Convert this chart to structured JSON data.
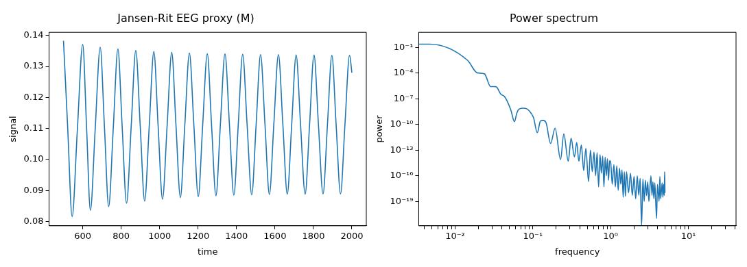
{
  "chart_data": [
    {
      "type": "line",
      "title": "Jansen-Rit EEG proxy (M)",
      "xlabel": "time",
      "ylabel": "signal",
      "grid": false,
      "legend": false,
      "xlim": [
        425,
        2075
      ],
      "ylim": [
        0.0786,
        0.141
      ],
      "xticks": [
        600,
        800,
        1000,
        1200,
        1400,
        1600,
        1800,
        2000
      ],
      "yticks": [
        0.08,
        0.09,
        {
          "value": 0.1,
          "label": "0.10"
        },
        0.11,
        0.12,
        0.13,
        0.14
      ],
      "x": [
        500,
        522,
        545,
        572,
        600,
        620,
        640,
        665,
        691,
        713,
        735,
        759,
        783,
        805,
        828,
        852,
        876,
        899,
        922,
        946,
        970,
        992,
        1015,
        1039,
        1063,
        1085,
        1108,
        1131,
        1155,
        1178,
        1201,
        1224,
        1248,
        1270,
        1293,
        1316,
        1340,
        1363,
        1386,
        1409,
        1432,
        1455,
        1479,
        1502,
        1525,
        1548,
        1571,
        1594,
        1618,
        1641,
        1664,
        1687,
        1710,
        1733,
        1757,
        1780,
        1803,
        1826,
        1850,
        1873,
        1896,
        1918,
        1941,
        1964,
        1988,
        2000
      ],
      "series": [
        {
          "color": "#1f77b4",
          "values": [
            0.1383,
            0.11,
            0.0816,
            0.1094,
            0.1371,
            0.1104,
            0.0836,
            0.1099,
            0.1362,
            0.1105,
            0.0848,
            0.1102,
            0.1356,
            0.1108,
            0.0859,
            0.1105,
            0.1351,
            0.1109,
            0.0866,
            0.1107,
            0.1348,
            0.111,
            0.0872,
            0.1109,
            0.1345,
            0.1111,
            0.0877,
            0.111,
            0.1343,
            0.1112,
            0.088,
            0.1111,
            0.1341,
            0.1112,
            0.0883,
            0.1112,
            0.134,
            0.1113,
            0.0885,
            0.1112,
            0.1339,
            0.1113,
            0.0886,
            0.1112,
            0.1338,
            0.1113,
            0.0887,
            0.1113,
            0.1338,
            0.1113,
            0.0888,
            0.1113,
            0.1337,
            0.1113,
            0.0888,
            0.1113,
            0.1337,
            0.1113,
            0.0889,
            0.1113,
            0.1336,
            0.1113,
            0.0889,
            0.1113,
            0.1336,
            0.128
          ]
        }
      ]
    },
    {
      "type": "line",
      "title": "Power spectrum",
      "xlabel": "frequency",
      "ylabel": "power",
      "grid": false,
      "legend": false,
      "log": "xy",
      "xlim": [
        0.0034,
        41
      ],
      "ylim": [
        1.4e-22,
        6
      ],
      "xticks": [
        {
          "value": 0.004,
          "label": null
        },
        {
          "value": 0.005,
          "label": null
        },
        {
          "value": 0.006,
          "label": null
        },
        {
          "value": 0.007,
          "label": null
        },
        {
          "value": 0.008,
          "label": null
        },
        {
          "value": 0.009,
          "label": null
        },
        {
          "value": 0.01,
          "label": "10⁻²"
        },
        {
          "value": 0.02,
          "label": null
        },
        {
          "value": 0.03,
          "label": null
        },
        {
          "value": 0.04,
          "label": null
        },
        {
          "value": 0.05,
          "label": null
        },
        {
          "value": 0.06,
          "label": null
        },
        {
          "value": 0.07,
          "label": null
        },
        {
          "value": 0.08,
          "label": null
        },
        {
          "value": 0.09,
          "label": null
        },
        {
          "value": 0.1,
          "label": "10⁻¹"
        },
        {
          "value": 0.2,
          "label": null
        },
        {
          "value": 0.3,
          "label": null
        },
        {
          "value": 0.4,
          "label": null
        },
        {
          "value": 0.5,
          "label": null
        },
        {
          "value": 0.6,
          "label": null
        },
        {
          "value": 0.7,
          "label": null
        },
        {
          "value": 0.8,
          "label": null
        },
        {
          "value": 0.9,
          "label": null
        },
        {
          "value": 1,
          "label": "10⁰"
        },
        {
          "value": 2,
          "label": null
        },
        {
          "value": 3,
          "label": null
        },
        {
          "value": 4,
          "label": null
        },
        {
          "value": 5,
          "label": null
        },
        {
          "value": 6,
          "label": null
        },
        {
          "value": 7,
          "label": null
        },
        {
          "value": 8,
          "label": null
        },
        {
          "value": 9,
          "label": null
        },
        {
          "value": 10,
          "label": "10¹"
        },
        {
          "value": 20,
          "label": null
        },
        {
          "value": 30,
          "label": null
        },
        {
          "value": 40,
          "label": null
        }
      ],
      "yticks": [
        {
          "value": 1e-19,
          "label": "10⁻¹⁹"
        },
        {
          "value": 1e-16,
          "label": "10⁻¹⁶"
        },
        {
          "value": 1e-13,
          "label": "10⁻¹³"
        },
        {
          "value": 1e-10,
          "label": "10⁻¹⁰"
        },
        {
          "value": 1e-07,
          "label": "10⁻⁷"
        },
        {
          "value": 0.0001,
          "label": "10⁻⁴"
        },
        {
          "value": 0.1,
          "label": "10⁻¹"
        }
      ],
      "x": [
        0.0034,
        0.00474,
        0.0145,
        0.0192,
        0.0238,
        0.0286,
        0.0335,
        0.0386,
        0.043,
        0.052,
        0.0579,
        0.062,
        0.066,
        0.0744,
        0.084,
        0.095,
        0.102,
        0.114,
        0.125,
        0.136,
        0.148,
        0.169,
        0.193,
        0.227,
        0.25,
        0.285,
        0.31,
        0.342,
        0.366,
        0.39,
        0.42,
        0.45,
        0.48,
        0.52,
        0.55,
        0.58,
        0.61,
        0.64,
        0.67,
        0.7,
        0.73,
        0.76,
        0.79,
        0.82,
        0.85,
        0.88,
        0.91,
        0.94,
        0.97,
        1.0,
        1.05,
        1.1,
        1.15,
        1.2,
        1.25,
        1.3,
        1.35,
        1.4,
        1.45,
        1.5,
        1.55,
        1.6,
        1.7,
        1.8,
        1.9,
        2.0,
        2.1,
        2.2,
        2.3,
        2.4,
        2.5,
        2.6,
        2.7,
        2.8,
        2.9,
        3.0,
        3.1,
        3.3,
        3.4,
        3.5,
        3.6,
        3.7,
        3.8,
        3.9,
        4.0,
        4.2,
        4.3,
        4.4,
        4.6,
        4.7,
        4.8,
        4.9,
        4.95,
        5.0
      ],
      "series": [
        {
          "color": "#1f77b4",
          "values": [
            0.25,
            0.25,
            0.0031,
            0.00011,
            8.3e-05,
            2.7e-06,
            2.6e-06,
            3.5e-07,
            1.9e-07,
            5e-09,
            2.1e-10,
            2e-09,
            6e-09,
            8e-09,
            6.5e-09,
            2e-09,
            6e-10,
            1.1e-11,
            2.5e-10,
            3e-10,
            1.5e-10,
            6e-13,
            3.7e-11,
            8e-15,
            8e-12,
            5e-15,
            2.5e-12,
            1.6e-14,
            8e-13,
            5e-15,
            4e-13,
            4e-16,
            1.6e-13,
            2e-17,
            1e-13,
            3e-16,
            6e-14,
            1e-16,
            5e-14,
            5e-18,
            3e-14,
            2e-16,
            2e-14,
            5e-18,
            1.5e-14,
            1e-16,
            1e-14,
            3e-17,
            6e-15,
            4e-15,
            1e-17,
            2e-15,
            5e-18,
            1.5e-15,
            2e-18,
            8e-16,
            1e-17,
            5e-16,
            3e-19,
            3e-16,
            4e-19,
            3e-16,
            1e-18,
            2e-16,
            5e-19,
            8e-17,
            2e-19,
            1e-16,
            5e-19,
            5e-17,
            1.4e-22,
            4e-17,
            1e-19,
            3e-17,
            5e-19,
            2e-17,
            1e-19,
            1e-16,
            5e-19,
            2e-17,
            2e-19,
            1.5e-17,
            1e-19,
            1e-21,
            1e-17,
            1e-19,
            8e-17,
            2e-19,
            1.5e-17,
            3e-19,
            1e-17,
            5e-19,
            3e-16,
            1e-18
          ]
        }
      ]
    }
  ]
}
